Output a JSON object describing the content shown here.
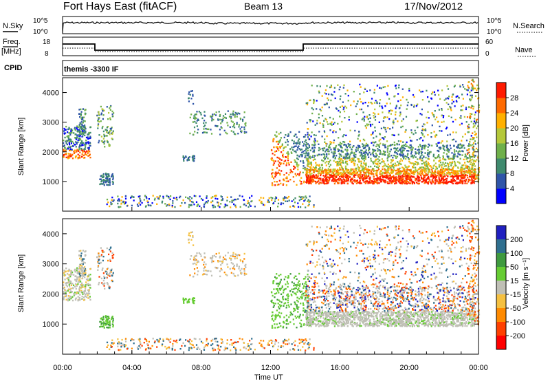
{
  "header": {
    "station": "Fort Hays East (fitACF)",
    "beam": "Beam 13",
    "date": "17/Nov/2012"
  },
  "strips": {
    "nsky_label": "N.Sky",
    "nsky_tick_top": "10^5",
    "nsky_tick_bottom": "10^0",
    "nsearch_label": "N.Search",
    "nsearch_tick_top": "10^5",
    "nsearch_tick_bottom": "10^0",
    "freq_label": "Freq.",
    "freq_unit": "[MHz]",
    "freq_ticks": [
      "18",
      "8"
    ],
    "nave_label": "Nave",
    "nave_ticks": [
      "60",
      "0"
    ],
    "cpid_label": "CPID",
    "cpid_value": "themis -3300 IF"
  },
  "chart_data": [
    {
      "type": "heatmap",
      "panel": "power",
      "ylabel": "Slant Range [km]",
      "yticks": [
        1000,
        2000,
        3000,
        4000
      ],
      "ylim": [
        0,
        4500
      ],
      "xlim": [
        "00:00",
        "24:00"
      ],
      "colorbar_label": "Power [dB]",
      "colorbar_ticks": [
        "4",
        "8",
        "12",
        "16",
        "20",
        "24",
        "28"
      ],
      "colorbar_colors": [
        "#0000ff",
        "#2f55a8",
        "#3f8a6e",
        "#6fb04a",
        "#b5c83a",
        "#ffb000",
        "#ff6a00",
        "#ff1a00"
      ]
    },
    {
      "type": "heatmap",
      "panel": "velocity",
      "ylabel": "Slant Range [km]",
      "yticks": [
        1000,
        2000,
        3000,
        4000
      ],
      "ylim": [
        0,
        4500
      ],
      "xlim": [
        "00:00",
        "24:00"
      ],
      "colorbar_label": "Velocity [m s⁻¹]",
      "colorbar_ticks": [
        "200",
        "100",
        "50",
        "15",
        "-15",
        "-50",
        "-100",
        "-200"
      ],
      "colorbar_colors": [
        "#2020c0",
        "#2f6f8f",
        "#3f9a3f",
        "#66cc33",
        "#bfbfb5",
        "#f5c040",
        "#ff8a00",
        "#ff4000",
        "#ff0000"
      ],
      "xticks": [
        "00:00",
        "04:00",
        "08:00",
        "12:00",
        "16:00",
        "20:00",
        "00:00"
      ],
      "xlabel": "Time UT"
    }
  ]
}
